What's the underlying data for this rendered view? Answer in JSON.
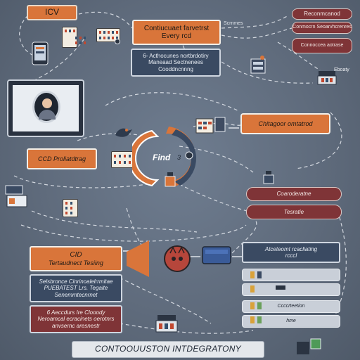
{
  "header": {
    "title": "ICV"
  },
  "top": {
    "main_lines": [
      "Contiucuaet farvetrst",
      "Every rcd"
    ],
    "side_label": "Scrnmes",
    "sub_lines": [
      "6-    Acthocunes nortbrdotiry",
      "Maneaad Sectnenees",
      "Cooddncnnng"
    ]
  },
  "right_pills": [
    "Reconmcanod",
    "Conmocrn Seoarvhcrenres",
    "Connoccea aotrase"
  ],
  "right_tag": "Eboaty",
  "mid_right": {
    "label": "Chitagoor omtatrod"
  },
  "ccd": {
    "label": "CCD Proliatdtrag"
  },
  "hub": {
    "label": "Find",
    "mark": "3"
  },
  "right_mid": [
    "Coaroderatne",
    "Tesratie"
  ],
  "ci": {
    "title": "CID",
    "subtitle": "Tertaudnect Tesiing"
  },
  "left_lower": {
    "navy_lines": [
      "Selsbronce Cinrinoalelrrmitae",
      "PUEBATEST Lrs. Tegaite",
      "Senemmtecnrnet"
    ],
    "orange_lines": [
      "6 Aeccdurs Ire Clooody",
      "Neroamcal ecracinets oerotnrs",
      "anvsernc aresnestr"
    ]
  },
  "right_lower": {
    "navy_lines": [
      "Atceteomt rcacliating",
      "rcccl"
    ],
    "grey_rows": [
      "",
      "",
      "Ccccrteetion",
      "hme"
    ]
  },
  "footer": {
    "title": "CONTOOUUSTON INTDEGRATONY"
  },
  "colors": {
    "orange": "#d9753a",
    "navy": "#3a4a62",
    "maroon": "#7f3437",
    "background": "#5f6b7c"
  },
  "icons": [
    "laptop-icon",
    "kanban-board-icon",
    "person-avatar-icon",
    "phone-icon",
    "bird-icon",
    "gear-icon",
    "server-icon",
    "printer-icon",
    "folder-icon",
    "github-cat-icon",
    "cloud-icon",
    "bottle-icon"
  ]
}
